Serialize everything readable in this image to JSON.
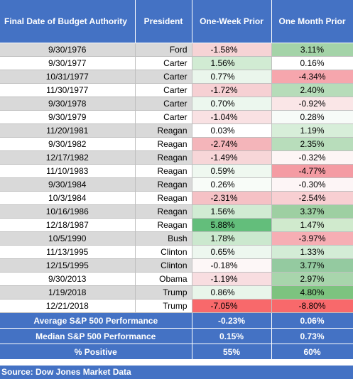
{
  "header": {
    "date": "Final Date of Budget Authority",
    "president": "President",
    "week": "One-Week Prior",
    "month": "One Month Prior"
  },
  "rows": [
    {
      "date": "9/30/1976",
      "president": "Ford",
      "week": "-1.58%",
      "month": "3.11%",
      "week_color": "#f6d3d5",
      "month_color": "#a4d3a8"
    },
    {
      "date": "9/30/1977",
      "president": "Carter",
      "week": "1.56%",
      "month": "0.16%",
      "week_color": "#d1ebd3",
      "month_color": "#ffffff"
    },
    {
      "date": "10/31/1977",
      "president": "Carter",
      "week": "0.77%",
      "month": "-4.34%",
      "week_color": "#eaf6ec",
      "month_color": "#f6a6ad"
    },
    {
      "date": "11/30/1977",
      "president": "Carter",
      "week": "-1.72%",
      "month": "2.40%",
      "week_color": "#f6d0d3",
      "month_color": "#b6dcb9"
    },
    {
      "date": "9/30/1978",
      "president": "Carter",
      "week": "0.70%",
      "month": "-0.92%",
      "week_color": "#ecf7ee",
      "month_color": "#fae6e7"
    },
    {
      "date": "9/30/1979",
      "president": "Carter",
      "week": "-1.04%",
      "month": "0.28%",
      "week_color": "#f9e1e3",
      "month_color": "#f7fbf8"
    },
    {
      "date": "11/20/1981",
      "president": "Reagan",
      "week": "0.03%",
      "month": "1.19%",
      "week_color": "#ffffff",
      "month_color": "#d7eed9"
    },
    {
      "date": "9/30/1982",
      "president": "Reagan",
      "week": "-2.74%",
      "month": "2.35%",
      "week_color": "#f4b5ba",
      "month_color": "#b8ddbb"
    },
    {
      "date": "12/17/1982",
      "president": "Reagan",
      "week": "-1.49%",
      "month": "-0.32%",
      "week_color": "#f7d6d8",
      "month_color": "#fdf5f5"
    },
    {
      "date": "11/10/1983",
      "president": "Reagan",
      "week": "0.59%",
      "month": "-4.77%",
      "week_color": "#eff8f0",
      "month_color": "#f49ba3"
    },
    {
      "date": "9/30/1984",
      "president": "Reagan",
      "week": "0.26%",
      "month": "-0.30%",
      "week_color": "#f8fcf8",
      "month_color": "#fdf5f6"
    },
    {
      "date": "10/3/1984",
      "president": "Reagan",
      "week": "-2.31%",
      "month": "-2.54%",
      "week_color": "#f5c1c5",
      "month_color": "#f8cfd2"
    },
    {
      "date": "10/16/1986",
      "president": "Reagan",
      "week": "1.56%",
      "month": "3.37%",
      "week_color": "#d1ebd3",
      "month_color": "#9ecfa2"
    },
    {
      "date": "12/18/1987",
      "president": "Reagan",
      "week": "5.88%",
      "month": "1.47%",
      "week_color": "#63be7b",
      "month_color": "#d0eacd"
    },
    {
      "date": "10/5/1990",
      "president": "Bush",
      "week": "1.78%",
      "month": "-3.97%",
      "week_color": "#cbe8ce",
      "month_color": "#f6aeb4"
    },
    {
      "date": "11/13/1995",
      "president": "Clinton",
      "week": "0.65%",
      "month": "1.33%",
      "week_color": "#edf7ef",
      "month_color": "#d3ecd6"
    },
    {
      "date": "12/15/1995",
      "president": "Clinton",
      "week": "-0.18%",
      "month": "3.77%",
      "week_color": "#fdf7f7",
      "month_color": "#94caa0"
    },
    {
      "date": "9/30/2013",
      "president": "Obama",
      "week": "-1.19%",
      "month": "2.97%",
      "week_color": "#f8dde0",
      "month_color": "#a8d5ac"
    },
    {
      "date": "1/19/2018",
      "president": "Trump",
      "week": "0.86%",
      "month": "4.80%",
      "week_color": "#e8f5ea",
      "month_color": "#7dc37f"
    },
    {
      "date": "12/21/2018",
      "president": "Trump",
      "week": "-7.05%",
      "month": "-8.80%",
      "week_color": "#f8696b",
      "month_color": "#f8696b"
    }
  ],
  "summary": [
    {
      "label": "Average S&P 500 Performance",
      "week": "-0.23%",
      "month": "0.06%"
    },
    {
      "label": "Median S&P 500 Performance",
      "week": "0.15%",
      "month": "0.73%"
    },
    {
      "label": "% Positive",
      "week": "55%",
      "month": "60%"
    }
  ],
  "source": "Source: Dow Jones Market Data"
}
